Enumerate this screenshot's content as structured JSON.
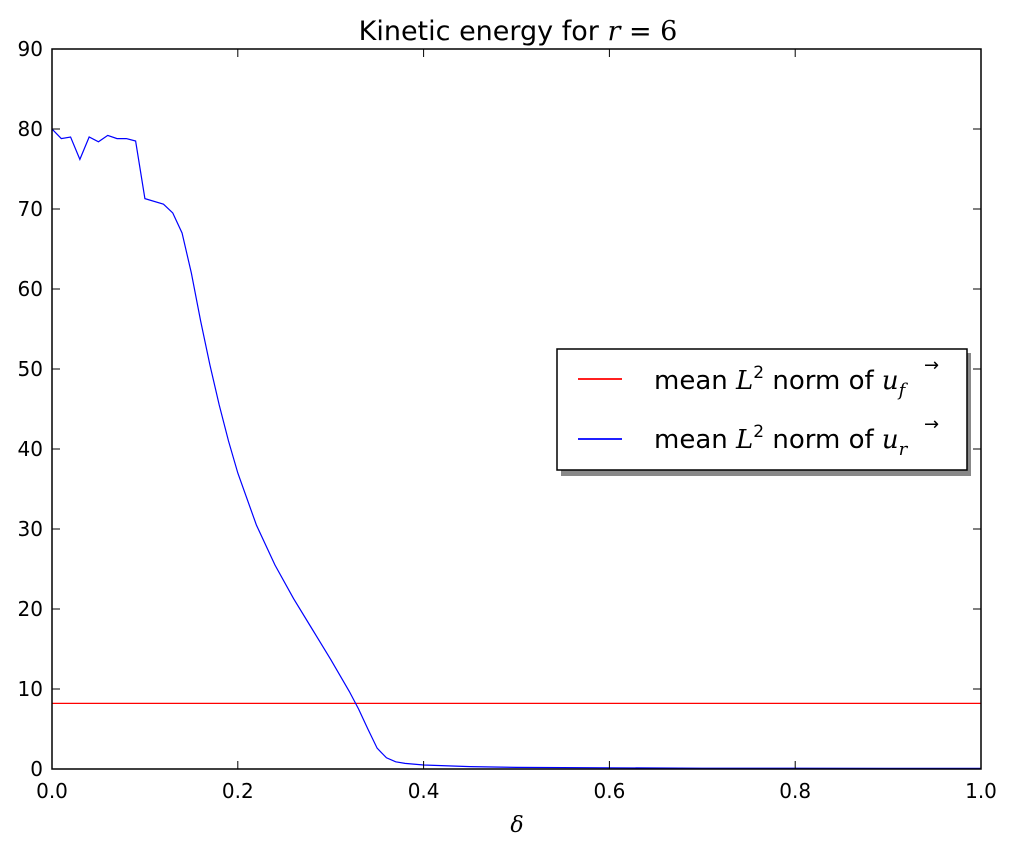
{
  "chart_data": {
    "type": "line",
    "title": {
      "prefix": "Kinetic energy for ",
      "math_var": "r",
      "math_eq": " = ",
      "math_val": "6"
    },
    "xlabel": "δ",
    "ylabel": "",
    "xlim": [
      0.0,
      1.0
    ],
    "ylim": [
      0,
      90
    ],
    "x_ticks": [
      0.0,
      0.2,
      0.4,
      0.6,
      0.8,
      1.0
    ],
    "x_tick_labels": [
      "0.0",
      "0.2",
      "0.4",
      "0.6",
      "0.8",
      "1.0"
    ],
    "y_ticks": [
      0,
      10,
      20,
      30,
      40,
      50,
      60,
      70,
      80,
      90
    ],
    "y_tick_labels": [
      "0",
      "10",
      "20",
      "30",
      "40",
      "50",
      "60",
      "70",
      "80",
      "90"
    ],
    "grid": false,
    "legend_position": "center-right",
    "series": [
      {
        "name": "mean L² norm of u_f",
        "legend": {
          "pre": "mean ",
          "L": "L",
          "sup": "2",
          "mid": "  norm of ",
          "u": "u",
          "sub": "f"
        },
        "color": "#ff0000",
        "x": [
          0.0,
          1.0
        ],
        "y": [
          8.2,
          8.2
        ]
      },
      {
        "name": "mean L² norm of u_r",
        "legend": {
          "pre": "mean ",
          "L": "L",
          "sup": "2",
          "mid": "  norm of ",
          "u": "u",
          "sub": "r"
        },
        "color": "#0000ff",
        "x": [
          0.0,
          0.01,
          0.02,
          0.03,
          0.04,
          0.05,
          0.06,
          0.07,
          0.08,
          0.09,
          0.1,
          0.12,
          0.13,
          0.14,
          0.15,
          0.16,
          0.17,
          0.18,
          0.19,
          0.2,
          0.22,
          0.24,
          0.26,
          0.28,
          0.3,
          0.32,
          0.33,
          0.34,
          0.35,
          0.36,
          0.37,
          0.38,
          0.4,
          0.45,
          0.5,
          0.6,
          0.7,
          0.8,
          0.9,
          1.0
        ],
        "y": [
          80.0,
          78.8,
          79.0,
          76.2,
          79.0,
          78.4,
          79.2,
          78.8,
          78.8,
          78.5,
          71.3,
          70.6,
          69.5,
          67.0,
          62.0,
          56.0,
          50.5,
          45.5,
          41.0,
          37.0,
          30.5,
          25.5,
          21.3,
          17.5,
          13.7,
          9.7,
          7.5,
          5.0,
          2.6,
          1.4,
          0.9,
          0.7,
          0.5,
          0.3,
          0.2,
          0.15,
          0.1,
          0.1,
          0.08,
          0.08
        ]
      }
    ]
  }
}
